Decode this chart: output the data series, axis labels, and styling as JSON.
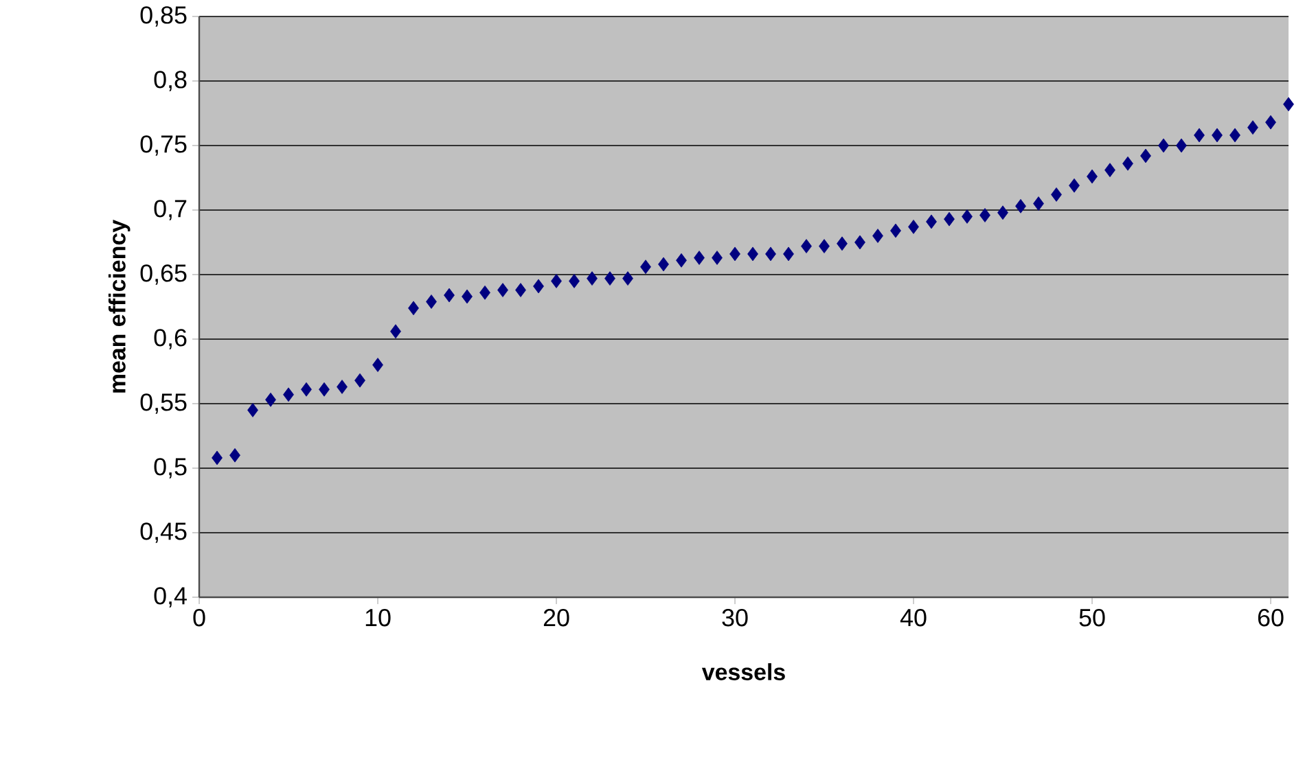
{
  "chart_data": {
    "type": "scatter",
    "xlabel": "vessels",
    "ylabel": "mean efficiency",
    "x": [
      1,
      2,
      3,
      4,
      5,
      6,
      7,
      8,
      9,
      10,
      11,
      12,
      13,
      14,
      15,
      16,
      17,
      18,
      19,
      20,
      21,
      22,
      23,
      24,
      25,
      26,
      27,
      28,
      29,
      30,
      31,
      32,
      33,
      34,
      35,
      36,
      37,
      38,
      39,
      40,
      41,
      42,
      43,
      44,
      45,
      46,
      47,
      48,
      49,
      50,
      51,
      52,
      53,
      54,
      55,
      56,
      57,
      58,
      59,
      60,
      61
    ],
    "values": [
      0.508,
      0.51,
      0.545,
      0.553,
      0.557,
      0.561,
      0.561,
      0.563,
      0.568,
      0.58,
      0.606,
      0.624,
      0.629,
      0.634,
      0.633,
      0.636,
      0.638,
      0.638,
      0.641,
      0.645,
      0.645,
      0.647,
      0.647,
      0.647,
      0.656,
      0.658,
      0.661,
      0.663,
      0.663,
      0.666,
      0.666,
      0.666,
      0.666,
      0.672,
      0.672,
      0.674,
      0.675,
      0.68,
      0.684,
      0.687,
      0.691,
      0.693,
      0.695,
      0.696,
      0.698,
      0.703,
      0.705,
      0.712,
      0.719,
      0.726,
      0.731,
      0.736,
      0.742,
      0.75,
      0.75,
      0.758,
      0.758,
      0.758,
      0.764,
      0.768,
      0.782
    ],
    "color": "#000080",
    "marker": "diamond",
    "grid": "y",
    "xlim": [
      0,
      61
    ],
    "xticks": [
      0,
      10,
      20,
      30,
      40,
      50,
      60
    ],
    "ylim": [
      0.4,
      0.85
    ],
    "yticks": [
      {
        "value": 0.4,
        "label": "0,4"
      },
      {
        "value": 0.45,
        "label": "0,45"
      },
      {
        "value": 0.5,
        "label": "0,5"
      },
      {
        "value": 0.55,
        "label": "0,55"
      },
      {
        "value": 0.6,
        "label": "0,6"
      },
      {
        "value": 0.65,
        "label": "0,65"
      },
      {
        "value": 0.7,
        "label": "0,7"
      },
      {
        "value": 0.75,
        "label": "0,75"
      },
      {
        "value": 0.8,
        "label": "0,8"
      },
      {
        "value": 0.85,
        "label": "0,85"
      }
    ]
  }
}
